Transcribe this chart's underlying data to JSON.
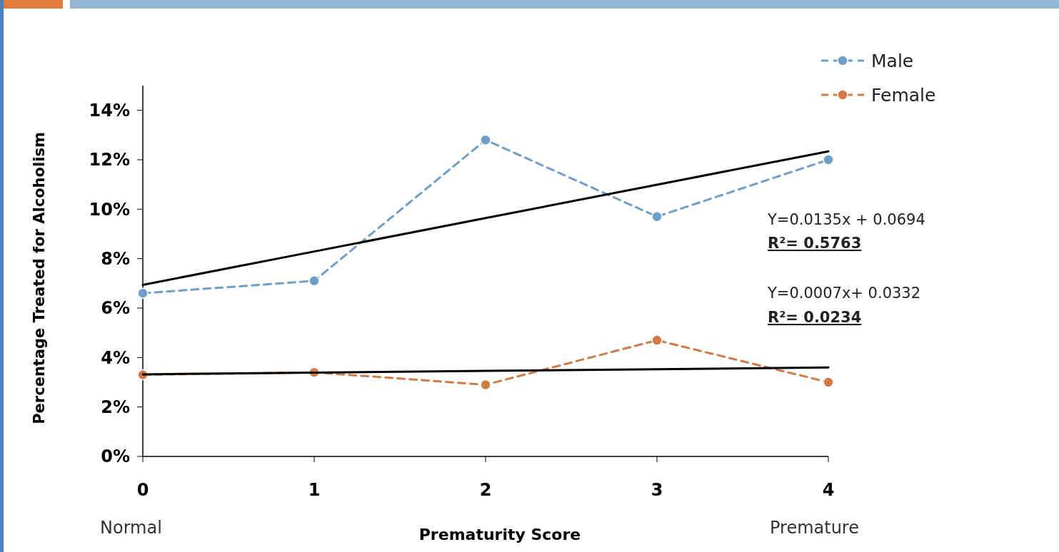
{
  "chart_data": {
    "type": "line",
    "xlabel": "Prematurity Score",
    "ylabel": "Percentage Treated for Alcoholism",
    "x": [
      0,
      1,
      2,
      3,
      4
    ],
    "series": [
      {
        "name": "Male",
        "color": "#6f9fc8",
        "values": [
          6.6,
          7.1,
          12.8,
          9.7,
          12.0
        ]
      },
      {
        "name": "Female",
        "color": "#d07a44",
        "values": [
          3.3,
          3.4,
          2.9,
          4.7,
          3.0
        ]
      },
      {
        "color": "#000000",
        "values": [
          6.94,
          8.29,
          9.64,
          10.99,
          12.34
        ],
        "line_style": "solid",
        "marker": "none"
      },
      {
        "color": "#000000",
        "values": [
          3.32,
          3.39,
          3.46,
          3.53,
          3.6
        ],
        "line_style": "solid",
        "marker": "none"
      }
    ],
    "xlim": [
      0,
      4
    ],
    "xticks": [
      0,
      1,
      2,
      3,
      4
    ],
    "ylim": [
      0,
      15
    ],
    "yticks": [
      {
        "value": 0,
        "label": "0%"
      },
      {
        "value": 2,
        "label": "2%"
      },
      {
        "value": 4,
        "label": "4%"
      },
      {
        "value": 6,
        "label": "6%"
      },
      {
        "value": 8,
        "label": "8%"
      },
      {
        "value": 10,
        "label": "10%"
      },
      {
        "value": 12,
        "label": "12%"
      },
      {
        "value": 14,
        "label": "14%"
      }
    ],
    "marker": "circle",
    "line_style": "dashed",
    "legend": "top right",
    "annotations": [
      "Y=0.0135x + 0.0694",
      "R²= 0.5763",
      "Y=0.0007x+ 0.0332",
      "R²= 0.0234",
      "Normal",
      "Premature"
    ]
  }
}
